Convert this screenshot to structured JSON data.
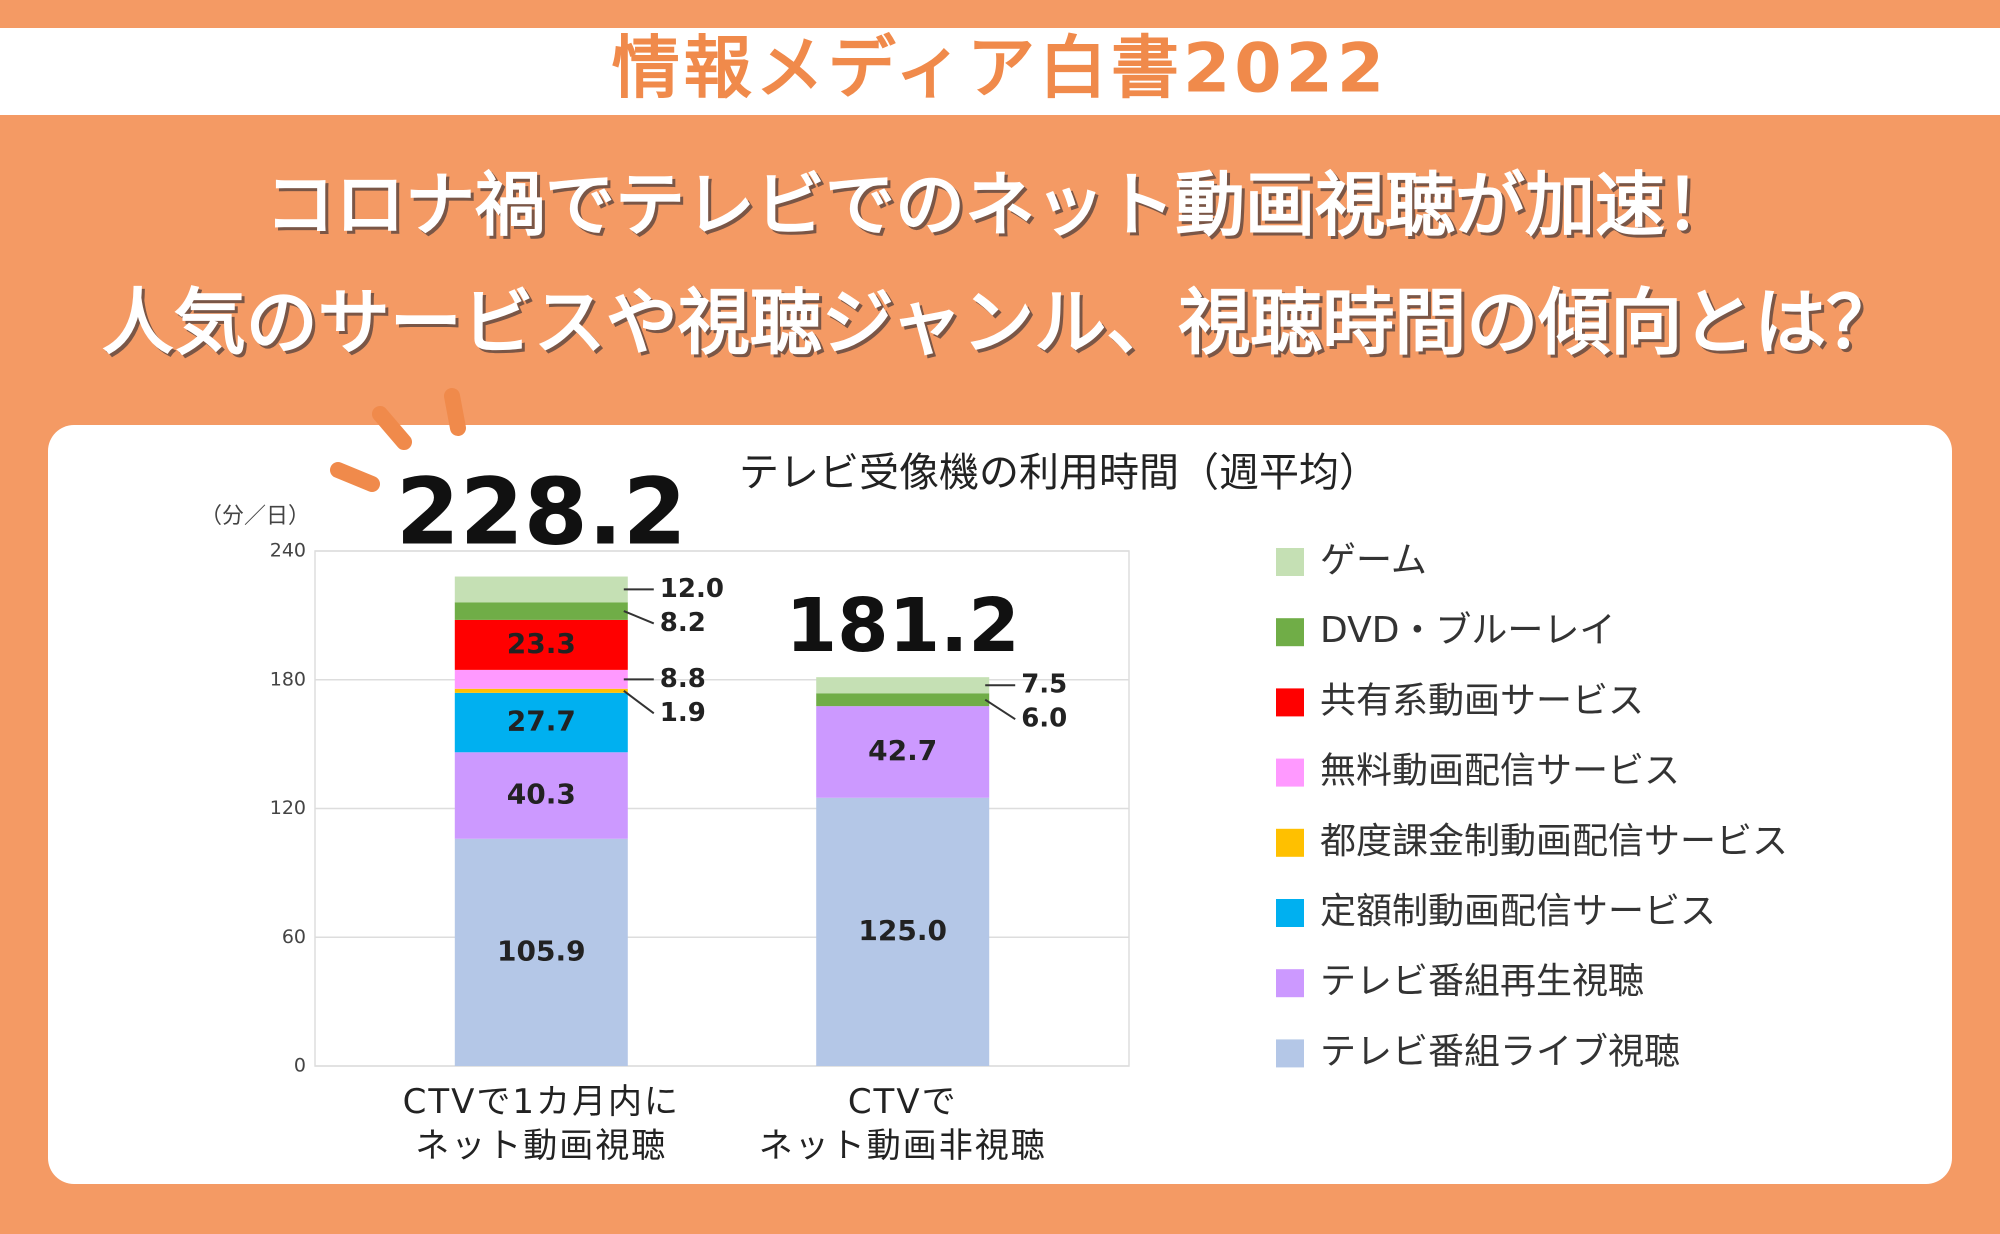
{
  "header": {
    "title": "情報メディア白書2022",
    "headline": [
      "コロナ禍でテレビでのネット動画視聴が加速！",
      "人気のサービスや視聴ジャンル、視聴時間の傾向とは？"
    ]
  },
  "chart_data": {
    "type": "stacked-bar",
    "title": "テレビ受像機の利用時間（週平均）",
    "y_unit": "（分／日）",
    "categories": [
      "CTVで1カ月内に\nネット動画視聴",
      "CTVで\nネット動画非視聴"
    ],
    "ylim": [
      0,
      240
    ],
    "yticks": [
      0,
      60,
      120,
      180,
      240
    ],
    "grid": true,
    "totals": [
      228.2,
      181.2
    ],
    "series": [
      {
        "name": "テレビ番組ライブ視聴",
        "color": "#b4c7e7",
        "values": [
          105.9,
          125.0
        ],
        "value_labels": [
          "105.9",
          "125.0"
        ]
      },
      {
        "name": "テレビ番組再生視聴",
        "color": "#cc99ff",
        "values": [
          40.3,
          42.7
        ],
        "value_labels": [
          "40.3",
          "42.7"
        ]
      },
      {
        "name": "定額制動画配信サービス",
        "color": "#00b0f0",
        "values": [
          27.7,
          null
        ],
        "value_labels": [
          "27.7",
          null
        ]
      },
      {
        "name": "都度課金制動画配信サービス",
        "color": "#ffc000",
        "values": [
          1.9,
          null
        ],
        "value_labels": [
          "1.9",
          null
        ]
      },
      {
        "name": "無料動画配信サービス",
        "color": "#ff99ff",
        "values": [
          8.8,
          null
        ],
        "value_labels": [
          "8.8",
          null
        ]
      },
      {
        "name": "共有系動画サービス",
        "color": "#ff0000",
        "values": [
          23.3,
          null
        ],
        "value_labels": [
          "23.3",
          null
        ]
      },
      {
        "name": "DVD・ブルーレイ",
        "color": "#70ad47",
        "values": [
          8.2,
          6.0
        ],
        "value_labels": [
          "8.2",
          "6.0"
        ]
      },
      {
        "name": "ゲーム",
        "color": "#c5e0b4",
        "values": [
          12.0,
          7.5
        ],
        "value_labels": [
          "12.0",
          "7.5"
        ]
      }
    ]
  }
}
